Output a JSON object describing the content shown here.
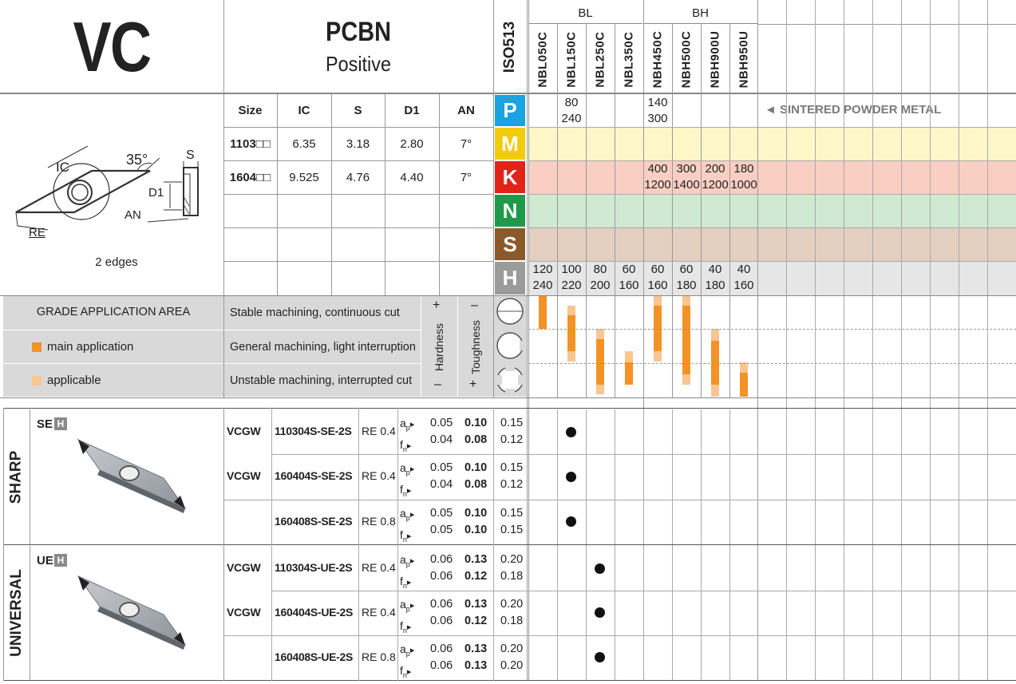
{
  "header": {
    "title": "VC",
    "material": "PCBN",
    "material_sub": "Positive",
    "iso_label": "ISO513",
    "group_bl": "BL",
    "group_bh": "BH",
    "grades": [
      "NBL050C",
      "NBL150C",
      "NBL250C",
      "NBL350C",
      "NBH450C",
      "NBH500C",
      "NBH900U",
      "NBH950U"
    ]
  },
  "diagram": {
    "labels": {
      "ic": "IC",
      "angle": "35°",
      "s": "S",
      "d1": "D1",
      "an": "AN",
      "re": "RE"
    },
    "edges": "2 edges"
  },
  "dimensions": {
    "columns": [
      "Size",
      "IC",
      "S",
      "D1",
      "AN"
    ],
    "rows": [
      {
        "size": "1103□□",
        "ic": "6.35",
        "s": "3.18",
        "d1": "2.80",
        "an": "7°"
      },
      {
        "size": "1604□□",
        "ic": "9.525",
        "s": "4.76",
        "d1": "4.40",
        "an": "7°"
      }
    ]
  },
  "iso_groups": [
    {
      "letter": "P",
      "color": "#1aa3e0",
      "band": "#ffffff"
    },
    {
      "letter": "M",
      "color": "#f2cc0c",
      "band": "#fdf7c8"
    },
    {
      "letter": "K",
      "color": "#e2231a",
      "band": "#f9cfc3"
    },
    {
      "letter": "N",
      "color": "#1e9a4a",
      "band": "#cfe9d2"
    },
    {
      "letter": "S",
      "color": "#8b5a2b",
      "band": "#e4cfc0"
    },
    {
      "letter": "H",
      "color": "#9b9b9b",
      "band": "#e6e6e6"
    }
  ],
  "speeds": {
    "P": [
      null,
      [
        "80",
        "240"
      ],
      null,
      null,
      [
        "140",
        "300"
      ],
      null,
      null,
      null
    ],
    "K": [
      null,
      null,
      null,
      null,
      [
        "400",
        "1200"
      ],
      [
        "300",
        "1400"
      ],
      [
        "200",
        "1200"
      ],
      [
        "180",
        "1000"
      ]
    ],
    "H": [
      [
        "120",
        "240"
      ],
      [
        "100",
        "220"
      ],
      [
        "80",
        "200"
      ],
      [
        "60",
        "160"
      ],
      [
        "60",
        "160"
      ],
      [
        "60",
        "180"
      ],
      [
        "40",
        "180"
      ],
      [
        "40",
        "160"
      ]
    ]
  },
  "sintered_note": "◄ SINTERED POWDER METAL",
  "application": {
    "title": "GRADE APPLICATION AREA",
    "legend_main": "main application",
    "legend_applicable": "applicable",
    "color_main": "#f39325",
    "color_applicable": "#f9c590",
    "conditions": [
      "Stable machining, continuous cut",
      "General machining, light interruption",
      "Unstable machining, interrupted cut"
    ],
    "hardness": "Hardness",
    "toughness": "Toughness",
    "plus": "+",
    "minus": "–"
  },
  "sections": [
    {
      "name": "SHARP",
      "chipbreaker": "SE",
      "badge": "H",
      "rows": [
        {
          "type": "VCGW",
          "code": "110304S-SE-2S",
          "re": "RE 0.4",
          "ap": [
            "0.05",
            "0.10",
            "0.15"
          ],
          "fn": [
            "0.04",
            "0.08",
            "0.12"
          ],
          "grade_col": 1
        },
        {
          "type": "VCGW",
          "code": "160404S-SE-2S",
          "re": "RE 0.4",
          "ap": [
            "0.05",
            "0.10",
            "0.15"
          ],
          "fn": [
            "0.04",
            "0.08",
            "0.12"
          ],
          "grade_col": 1
        },
        {
          "type": "",
          "code": "160408S-SE-2S",
          "re": "RE 0.8",
          "ap": [
            "0.05",
            "0.10",
            "0.15"
          ],
          "fn": [
            "0.05",
            "0.10",
            "0.15"
          ],
          "grade_col": 1
        }
      ]
    },
    {
      "name": "UNIVERSAL",
      "chipbreaker": "UE",
      "badge": "H",
      "rows": [
        {
          "type": "VCGW",
          "code": "110304S-UE-2S",
          "re": "RE 0.4",
          "ap": [
            "0.06",
            "0.13",
            "0.20"
          ],
          "fn": [
            "0.06",
            "0.12",
            "0.18"
          ],
          "grade_col": 2
        },
        {
          "type": "VCGW",
          "code": "160404S-UE-2S",
          "re": "RE 0.4",
          "ap": [
            "0.06",
            "0.13",
            "0.20"
          ],
          "fn": [
            "0.06",
            "0.12",
            "0.18"
          ],
          "grade_col": 2
        },
        {
          "type": "",
          "code": "160408S-UE-2S",
          "re": "RE 0.8",
          "ap": [
            "0.06",
            "0.13",
            "0.20"
          ],
          "fn": [
            "0.06",
            "0.13",
            "0.20"
          ],
          "grade_col": 2
        }
      ]
    }
  ],
  "ap_label": "a",
  "ap_sub": "p",
  "fn_label": "f",
  "fn_sub": "n",
  "arrow": "▸"
}
